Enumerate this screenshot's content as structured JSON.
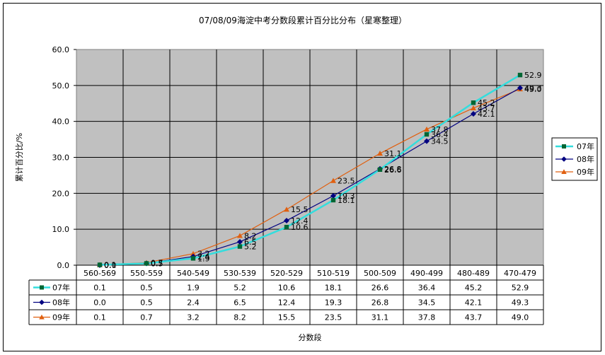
{
  "chart_data": {
    "type": "line",
    "title": "07/08/09海淀中考分数段累计百分比分布（星寒整理）",
    "xlabel": "分数段",
    "ylabel": "累计百分比/%",
    "ylim": [
      0,
      60
    ],
    "yticks": [
      "0.0",
      "10.0",
      "20.0",
      "30.0",
      "40.0",
      "50.0",
      "60.0"
    ],
    "grid": true,
    "legend_position": "right",
    "categories": [
      "560-569",
      "550-559",
      "540-549",
      "530-539",
      "520-529",
      "510-519",
      "500-509",
      "490-499",
      "480-489",
      "470-479"
    ],
    "series": [
      {
        "name": "07年",
        "marker": "square",
        "line_color": "#33dddd",
        "marker_color": "#006633",
        "values": [
          0.1,
          0.5,
          1.9,
          5.2,
          10.6,
          18.1,
          26.6,
          36.4,
          45.2,
          52.9
        ],
        "labels": [
          "0.1",
          "0.5",
          "1.9",
          "5.2",
          "10.6",
          "18.1",
          "26.6",
          "36.4",
          "45.2",
          "52.9"
        ]
      },
      {
        "name": "08年",
        "marker": "diamond",
        "line_color": "#000080",
        "marker_color": "#000080",
        "values": [
          0.0,
          0.5,
          2.4,
          6.5,
          12.4,
          19.3,
          26.8,
          34.5,
          42.1,
          49.3
        ],
        "labels": [
          "0.0",
          "0.5",
          "2.4",
          "6.5",
          "12.4",
          "19.3",
          "26.8",
          "34.5",
          "42.1",
          "49.3"
        ]
      },
      {
        "name": "09年",
        "marker": "triangle",
        "line_color": "#e06010",
        "marker_color": "#e06010",
        "values": [
          0.1,
          0.7,
          3.2,
          8.2,
          15.5,
          23.5,
          31.1,
          37.8,
          43.7,
          49.0
        ],
        "labels": [
          "0.1",
          "0.7",
          "3.2",
          "8.2",
          "15.5",
          "23.5",
          "31.1",
          "37.8",
          "43.7",
          "49.0"
        ]
      }
    ]
  }
}
